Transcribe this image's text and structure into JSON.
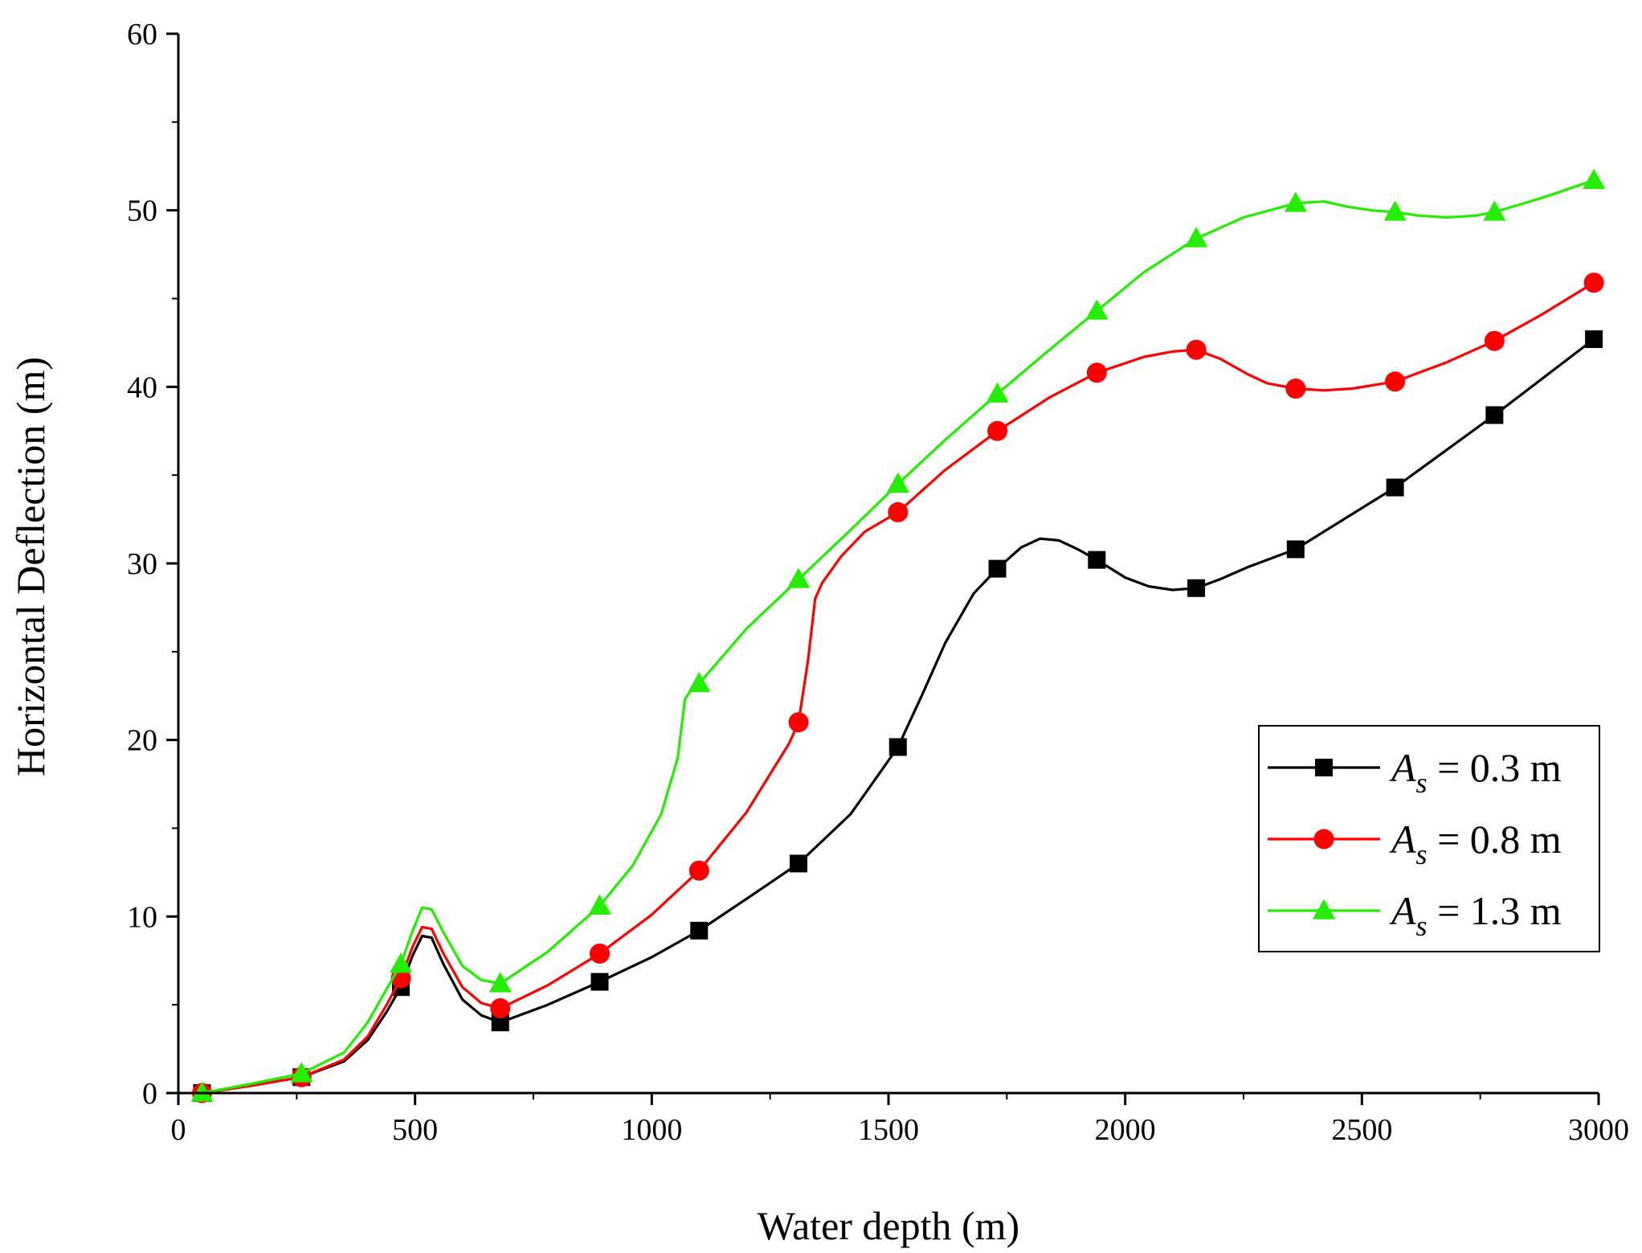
{
  "chart_data": {
    "type": "line",
    "title": "",
    "xlabel": "Water depth (m)",
    "ylabel": "Horizontal Deflection (m)",
    "xlim": [
      0,
      3000
    ],
    "ylim": [
      0,
      60
    ],
    "x_ticks": [
      0,
      500,
      1000,
      1500,
      2000,
      2500,
      3000
    ],
    "y_ticks": [
      0,
      10,
      20,
      30,
      40,
      50,
      60
    ],
    "x_tick_labels": [
      "0",
      "500",
      "1000",
      "1500",
      "2000",
      "2500",
      "3000"
    ],
    "y_tick_labels": [
      "0",
      "10",
      "20",
      "30",
      "40",
      "50",
      "60"
    ],
    "x_minor_step": 250,
    "y_minor_step": 5,
    "grid": false,
    "legend_position": "bottom-right",
    "series": [
      {
        "name": "A_s = 0.3 m",
        "legend_symbol": "A",
        "legend_subscript": "s",
        "legend_value": "= 0.3 m",
        "color": "#000000",
        "marker": "square",
        "x": [
          50,
          260,
          470,
          680,
          890,
          1100,
          1310,
          1520,
          1730,
          1940,
          2150,
          2360,
          2570,
          2780,
          2990
        ],
        "y": [
          0.0,
          0.9,
          6.0,
          4.0,
          6.3,
          9.2,
          13.0,
          19.6,
          29.7,
          30.2,
          28.6,
          30.8,
          34.3,
          38.4,
          42.7
        ],
        "curve_x": [
          50,
          150,
          260,
          350,
          400,
          440,
          470,
          495,
          515,
          535,
          560,
          600,
          640,
          680,
          780,
          890,
          1000,
          1100,
          1200,
          1310,
          1420,
          1520,
          1570,
          1620,
          1680,
          1730,
          1780,
          1820,
          1860,
          1900,
          1940,
          2000,
          2050,
          2100,
          2150,
          2200,
          2260,
          2360,
          2570,
          2780,
          2990
        ],
        "curve_y": [
          0.0,
          0.4,
          0.9,
          1.8,
          3.0,
          4.6,
          6.0,
          7.8,
          8.9,
          8.8,
          7.3,
          5.3,
          4.4,
          4.0,
          5.0,
          6.3,
          7.7,
          9.2,
          11.0,
          13.0,
          15.8,
          19.6,
          22.5,
          25.5,
          28.3,
          29.7,
          30.9,
          31.4,
          31.3,
          30.8,
          30.2,
          29.2,
          28.7,
          28.5,
          28.6,
          29.1,
          29.8,
          30.8,
          34.3,
          38.4,
          42.7
        ]
      },
      {
        "name": "A_s = 0.8 m",
        "legend_symbol": "A",
        "legend_subscript": "s",
        "legend_value": "= 0.8 m",
        "color": "#ff0000",
        "marker": "circle",
        "x": [
          50,
          260,
          470,
          680,
          890,
          1100,
          1310,
          1520,
          1730,
          1940,
          2150,
          2360,
          2570,
          2780,
          2990
        ],
        "y": [
          0.0,
          0.9,
          6.5,
          4.8,
          7.9,
          12.6,
          21.0,
          32.9,
          37.5,
          40.8,
          42.1,
          39.9,
          40.3,
          42.6,
          45.9
        ],
        "curve_x": [
          50,
          150,
          260,
          350,
          400,
          440,
          470,
          495,
          515,
          535,
          560,
          600,
          640,
          680,
          780,
          890,
          1000,
          1100,
          1200,
          1290,
          1310,
          1330,
          1345,
          1360,
          1400,
          1450,
          1520,
          1620,
          1730,
          1840,
          1940,
          2040,
          2100,
          2150,
          2200,
          2260,
          2300,
          2360,
          2420,
          2480,
          2570,
          2680,
          2780,
          2880,
          2990
        ],
        "curve_y": [
          0.0,
          0.4,
          0.9,
          1.9,
          3.2,
          5.0,
          6.5,
          8.3,
          9.4,
          9.3,
          7.9,
          6.0,
          5.1,
          4.8,
          6.1,
          7.9,
          10.1,
          12.6,
          15.9,
          19.8,
          21.0,
          24.5,
          28.0,
          28.9,
          30.4,
          31.8,
          32.9,
          35.3,
          37.5,
          39.4,
          40.8,
          41.7,
          42.0,
          42.1,
          41.6,
          40.7,
          40.2,
          39.9,
          39.8,
          39.9,
          40.3,
          41.4,
          42.6,
          44.1,
          45.9
        ]
      },
      {
        "name": "A_s = 1.3 m",
        "legend_symbol": "A",
        "legend_subscript": "s",
        "legend_value": "= 1.3 m",
        "color": "#22ee00",
        "marker": "triangle",
        "x": [
          50,
          260,
          470,
          680,
          890,
          1100,
          1310,
          1520,
          1730,
          1940,
          2150,
          2360,
          2570,
          2780,
          2990
        ],
        "y": [
          0.0,
          1.1,
          7.3,
          6.2,
          10.6,
          23.2,
          29.1,
          34.5,
          39.6,
          44.3,
          48.4,
          50.4,
          49.9,
          49.9,
          51.7
        ],
        "curve_x": [
          50,
          150,
          260,
          350,
          400,
          440,
          470,
          495,
          515,
          535,
          560,
          600,
          640,
          680,
          780,
          890,
          960,
          1020,
          1055,
          1070,
          1085,
          1100,
          1200,
          1310,
          1420,
          1520,
          1620,
          1730,
          1840,
          1940,
          2040,
          2150,
          2250,
          2360,
          2420,
          2470,
          2520,
          2570,
          2620,
          2680,
          2740,
          2780,
          2880,
          2990
        ],
        "curve_y": [
          0.0,
          0.5,
          1.1,
          2.3,
          4.0,
          5.9,
          7.3,
          9.2,
          10.5,
          10.4,
          9.1,
          7.2,
          6.4,
          6.2,
          8.0,
          10.6,
          12.9,
          15.8,
          19.0,
          22.3,
          22.9,
          23.2,
          26.3,
          29.1,
          31.9,
          34.5,
          37.0,
          39.6,
          42.1,
          44.3,
          46.5,
          48.4,
          49.6,
          50.4,
          50.5,
          50.2,
          50.0,
          49.9,
          49.7,
          49.6,
          49.7,
          49.9,
          50.7,
          51.7
        ]
      }
    ]
  }
}
